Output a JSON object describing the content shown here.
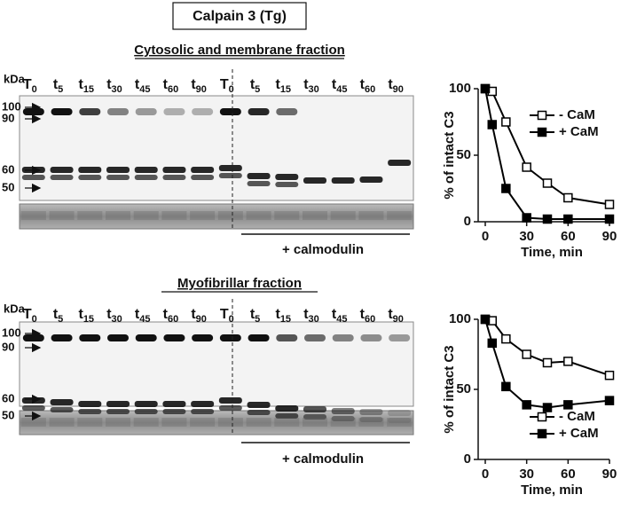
{
  "figure": {
    "title": "Calpain 3 (Tg)",
    "panels": [
      {
        "title": "Cytosolic and membrane fraction",
        "kda_label": "kDa",
        "markers": [
          "100",
          "90",
          "60",
          "50"
        ],
        "lanes": [
          {
            "letter": "T",
            "sub": "0"
          },
          {
            "letter": "t",
            "sub": "5"
          },
          {
            "letter": "t",
            "sub": "15"
          },
          {
            "letter": "t",
            "sub": "30"
          },
          {
            "letter": "t",
            "sub": "45"
          },
          {
            "letter": "t",
            "sub": "60"
          },
          {
            "letter": "t",
            "sub": "90"
          },
          {
            "letter": "T",
            "sub": "0"
          },
          {
            "letter": "t",
            "sub": "5"
          },
          {
            "letter": "t",
            "sub": "15"
          },
          {
            "letter": "t",
            "sub": "30"
          },
          {
            "letter": "t",
            "sub": "45"
          },
          {
            "letter": "t",
            "sub": "60"
          },
          {
            "letter": "t",
            "sub": "90"
          }
        ],
        "treatment": "+ calmodulin"
      },
      {
        "title": "Myofibrillar fraction",
        "kda_label": "kDa",
        "markers": [
          "100",
          "90",
          "60",
          "50"
        ],
        "lanes": [
          {
            "letter": "T",
            "sub": "0"
          },
          {
            "letter": "t",
            "sub": "5"
          },
          {
            "letter": "t",
            "sub": "15"
          },
          {
            "letter": "t",
            "sub": "30"
          },
          {
            "letter": "t",
            "sub": "45"
          },
          {
            "letter": "t",
            "sub": "60"
          },
          {
            "letter": "t",
            "sub": "90"
          },
          {
            "letter": "T",
            "sub": "0"
          },
          {
            "letter": "t",
            "sub": "5"
          },
          {
            "letter": "t",
            "sub": "15"
          },
          {
            "letter": "t",
            "sub": "30"
          },
          {
            "letter": "t",
            "sub": "45"
          },
          {
            "letter": "t",
            "sub": "60"
          },
          {
            "letter": "t",
            "sub": "90"
          }
        ],
        "treatment": "+ calmodulin"
      }
    ]
  },
  "chart_data": [
    {
      "type": "line",
      "x": [
        0,
        5,
        15,
        30,
        45,
        60,
        90
      ],
      "xlabel": "Time, min",
      "ylabel": "% of intact C3",
      "xlim": [
        0,
        90
      ],
      "xticks": [
        0,
        30,
        60,
        90
      ],
      "ylim": [
        0,
        100
      ],
      "yticks": [
        0,
        50,
        100
      ],
      "legend": "upper right",
      "series": [
        {
          "name": "- CaM",
          "color": "#000000",
          "marker_fill": "#ffffff",
          "values": [
            100,
            98,
            75,
            41,
            29,
            18,
            13
          ]
        },
        {
          "name": "+ CaM",
          "color": "#000000",
          "marker_fill": "#000000",
          "values": [
            100,
            73,
            25,
            3,
            2,
            2,
            2
          ]
        }
      ]
    },
    {
      "type": "line",
      "x": [
        0,
        5,
        15,
        30,
        45,
        60,
        90
      ],
      "xlabel": "Time, min",
      "ylabel": "% of intact C3",
      "xlim": [
        0,
        90
      ],
      "xticks": [
        0,
        30,
        60,
        90
      ],
      "ylim": [
        0,
        100
      ],
      "yticks": [
        0,
        50,
        100
      ],
      "legend": "lower right",
      "series": [
        {
          "name": "- CaM",
          "color": "#000000",
          "marker_fill": "#ffffff",
          "values": [
            100,
            99,
            86,
            75,
            69,
            70,
            60
          ]
        },
        {
          "name": "+ CaM",
          "color": "#000000",
          "marker_fill": "#000000",
          "values": [
            100,
            83,
            52,
            39,
            37,
            39,
            42
          ]
        }
      ]
    }
  ]
}
